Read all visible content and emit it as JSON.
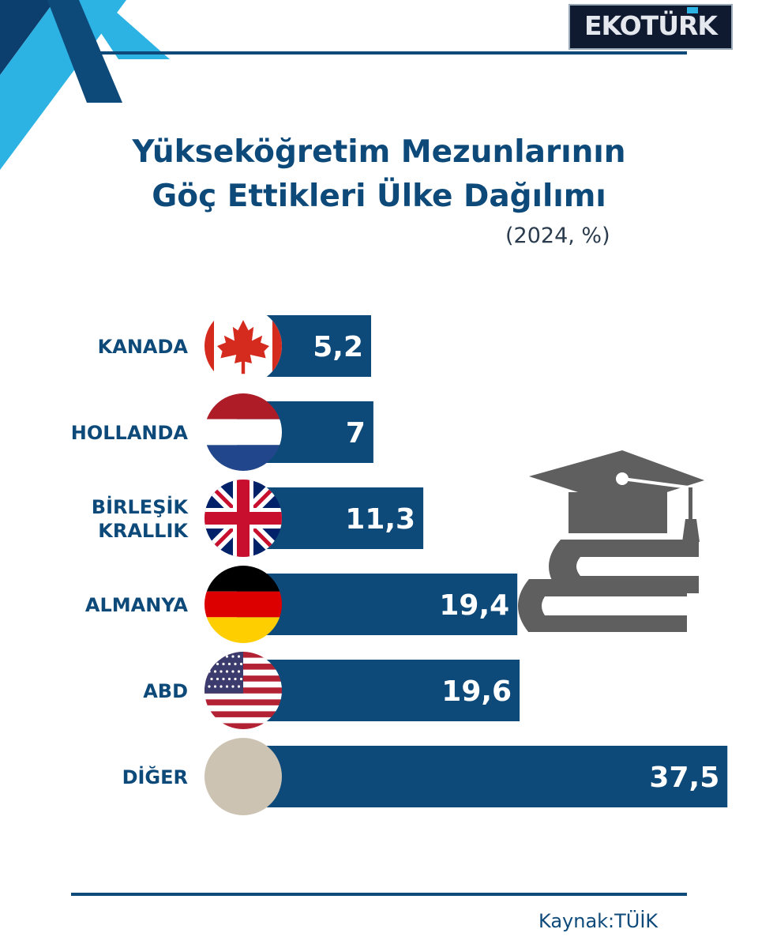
{
  "brand": {
    "logo_text": "EKOTÜRK"
  },
  "header": {
    "title_line1": "Yükseköğretim Mezunlarının",
    "title_line2": "Göç Ettikleri Ülke Dağılımı",
    "subtitle": "(2024, %)"
  },
  "source": {
    "text": "Kaynak:TÜİK"
  },
  "colors": {
    "bar": "#0d4a7a",
    "accent": "#2cb3e4",
    "other_circle": "#cdc3b2",
    "icon": "#5f5f5f"
  },
  "icons": [
    "graduation-cap-icon",
    "books-icon"
  ],
  "chart_data": {
    "type": "bar",
    "orientation": "horizontal",
    "categories": [
      {
        "label": [
          "KANADA"
        ],
        "flag": "canada",
        "value": 5.2,
        "value_label": "5,2"
      },
      {
        "label": [
          "HOLLANDA"
        ],
        "flag": "netherlands",
        "value": 7,
        "value_label": "7"
      },
      {
        "label": [
          "BİRLEŞİK",
          "KRALLIK"
        ],
        "flag": "united-kingdom",
        "value": 11.3,
        "value_label": "11,3"
      },
      {
        "label": [
          "ALMANYA"
        ],
        "flag": "germany",
        "value": 19.4,
        "value_label": "19,4"
      },
      {
        "label": [
          "ABD"
        ],
        "flag": "usa",
        "value": 19.6,
        "value_label": "19,6"
      },
      {
        "label": [
          "DİĞER"
        ],
        "flag": "other",
        "value": 37.5,
        "value_label": "37,5"
      }
    ],
    "grid": false,
    "legend": "none"
  }
}
